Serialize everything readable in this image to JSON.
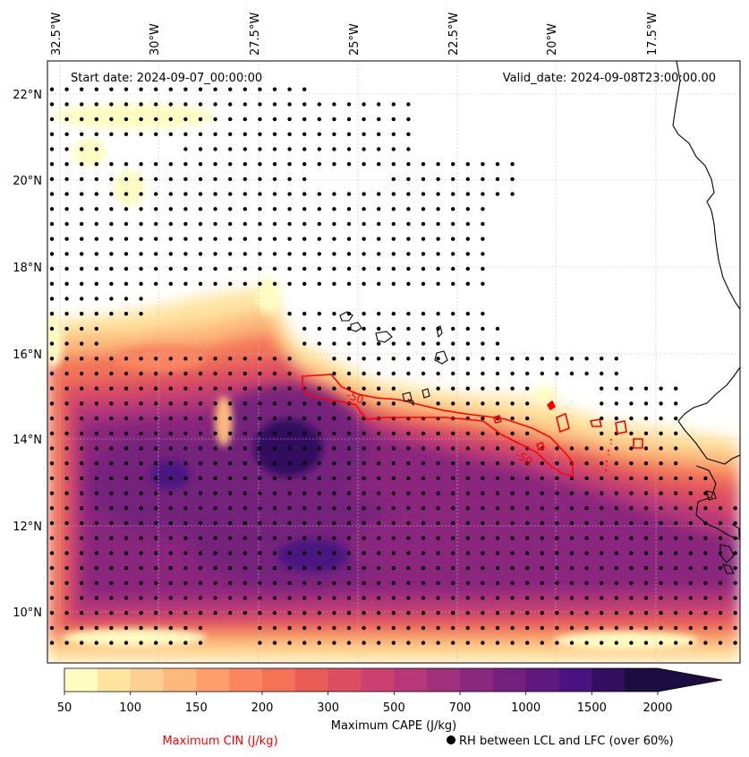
{
  "map": {
    "start_label": "Start date: 2024-09-07_00:00:00",
    "valid_label": "Valid_date: 2024-09-08T23:00:00.00",
    "lon_labels": [
      "32.5°W",
      "30°W",
      "27.5°W",
      "25°W",
      "22.5°W",
      "20°W",
      "17.5°W"
    ],
    "lat_labels": [
      "22°N",
      "20°N",
      "18°N",
      "16°N",
      "14°N",
      "12°N",
      "10°N"
    ],
    "cin_contour_label": "-50",
    "colors": {
      "cin": "#ff0000",
      "coast": "#000000",
      "grid": "#bfbfbf"
    }
  },
  "colorbar": {
    "title": "Maximum CAPE (J/kg)",
    "ticks": [
      "50",
      "100",
      "150",
      "200",
      "300",
      "500",
      "700",
      "1000",
      "1500",
      "2000"
    ],
    "colors": [
      "#fffcc1",
      "#fee4a0",
      "#fecf92",
      "#fdb97c",
      "#fd9e6c",
      "#fa8560",
      "#f37357",
      "#e95c56",
      "#dc4d62",
      "#cc4070",
      "#b73779",
      "#a1307c",
      "#8a287d",
      "#74207d",
      "#5f187d",
      "#4b1380",
      "#33105f",
      "#1b0c41"
    ]
  },
  "legend": {
    "cin_label": "Maximum CIN (J/kg)",
    "rh_label": "RH between LCL and LFC (over 60%)"
  }
}
